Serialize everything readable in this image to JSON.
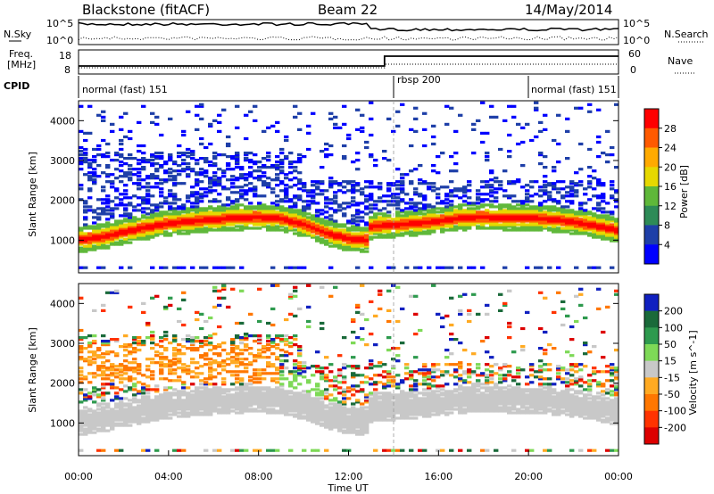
{
  "header": {
    "station": "Blackstone (fitACF)",
    "beam": "Beam 22",
    "date": "14/May/2014"
  },
  "noise_panel": {
    "left_label": "N.Sky",
    "right_label": "N.Search",
    "left_ticks": [
      "10^5",
      "10^0"
    ],
    "right_ticks": [
      "10^5",
      "10^0"
    ]
  },
  "freq_panel": {
    "left_label_line1": "Freq.",
    "left_label_line2": "[MHz]",
    "right_label": "Nave",
    "left_ticks": [
      "18",
      "8"
    ],
    "right_ticks": [
      "60",
      "0"
    ]
  },
  "cpid_panel": {
    "label": "CPID",
    "segments": [
      {
        "label": "normal (fast) 151",
        "start_h": 0
      },
      {
        "label": "rbsp 200",
        "start_h": 14
      },
      {
        "label": "normal (fast) 151",
        "start_h": 20
      }
    ]
  },
  "chart_data": [
    {
      "type": "heatmap",
      "title": "Power",
      "ylabel": "Slant Range [km]",
      "colorbar_label": "Power [dB]",
      "colorbar_ticks": [
        "28",
        "24",
        "20",
        "16",
        "12",
        "8",
        "4"
      ],
      "colorbar_colors": [
        "#ff0000",
        "#ff5a00",
        "#ffaa00",
        "#e6d800",
        "#5fb83a",
        "#2e8b57",
        "#1e3fa8",
        "#0000ff"
      ],
      "ylim": [
        180,
        4500
      ],
      "yticks": [
        "4000",
        "3000",
        "2000",
        "1000"
      ],
      "bands": [
        {
          "t": [
            0,
            1,
            2,
            3,
            4,
            5,
            6,
            7,
            8,
            9,
            10,
            11,
            12,
            12.9,
            13,
            14,
            15,
            16,
            17,
            18,
            19,
            20,
            21,
            22,
            23,
            24
          ],
          "r": [
            1000,
            1080,
            1200,
            1320,
            1420,
            1480,
            1520,
            1560,
            1580,
            1540,
            1400,
            1180,
            1040,
            1000,
            1350,
            1380,
            1420,
            1480,
            1560,
            1580,
            1560,
            1560,
            1520,
            1460,
            1360,
            1240
          ]
        }
      ]
    },
    {
      "type": "heatmap",
      "title": "Velocity",
      "ylabel": "Slant Range [km]",
      "colorbar_label": "Velocity [m s^-1]",
      "colorbar_ticks": [
        "200",
        "100",
        "50",
        "15",
        "-15",
        "-50",
        "-100",
        "-200"
      ],
      "colorbar_colors": [
        "#1020c0",
        "#1a6a3a",
        "#2e9a4e",
        "#7ed957",
        "#c8c8c8",
        "#ffaa22",
        "#ff7700",
        "#ff3300",
        "#dd0000"
      ],
      "ylim": [
        180,
        4500
      ],
      "yticks": [
        "4000",
        "3000",
        "2000",
        "1000"
      ],
      "xlabel": "Time UT",
      "xticks": [
        "00:00",
        "04:00",
        "08:00",
        "12:00",
        "16:00",
        "20:00",
        "00:00"
      ],
      "xlim": [
        0,
        24
      ]
    }
  ]
}
